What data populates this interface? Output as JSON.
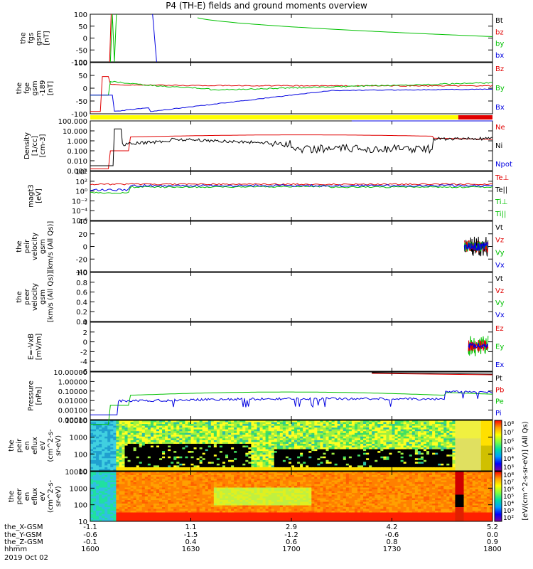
{
  "title": "P4 (TH-E) fields and ground moments overview",
  "colors": {
    "black": "#000000",
    "red": "#e00000",
    "green": "#00c000",
    "blue": "#0000e0",
    "yellow": "#ffff00"
  },
  "chart_data": [
    {
      "type": "line",
      "ylabel": [
        "the",
        "fgs",
        "gsm",
        "[nT]"
      ],
      "yticks": [
        "100",
        "50",
        "0",
        "-50",
        "-100"
      ],
      "ylim": [
        -100,
        100
      ],
      "series": [
        {
          "name": "Bt",
          "color": "#000000"
        },
        {
          "name": "bz",
          "color": "#e00000"
        },
        {
          "name": "by",
          "color": "#00c000"
        },
        {
          "name": "bx",
          "color": "#0000e0"
        }
      ]
    },
    {
      "type": "line",
      "ylabel": [
        "the",
        "fge",
        "gsm",
        "-189",
        "[nT]"
      ],
      "yticks": [
        "100",
        "50",
        "0",
        "-50",
        "-100"
      ],
      "ylim": [
        -120,
        100
      ],
      "series": [
        {
          "name": "Bz",
          "color": "#e00000"
        },
        {
          "name": "By",
          "color": "#00c000"
        },
        {
          "name": "Bx",
          "color": "#0000e0"
        }
      ]
    },
    {
      "type": "line",
      "ylabel": [
        "Density",
        "[1/cc]",
        "[cm-3]"
      ],
      "yticks": [
        "100.000",
        "10.000",
        "1.000",
        "0.100",
        "0.010",
        "0.001"
      ],
      "log": true,
      "series": [
        {
          "name": "Ne",
          "color": "#e00000"
        },
        {
          "name": "Ni",
          "color": "#000000"
        },
        {
          "name": "Npot",
          "color": "#0000e0"
        }
      ]
    },
    {
      "type": "line",
      "ylabel": [
        "magt3",
        "[eV]"
      ],
      "yticks": [
        "10⁴",
        "10²",
        "10⁰",
        "10⁻²",
        "10⁻⁴",
        "10⁻⁶"
      ],
      "log": true,
      "series": [
        {
          "name": "Te⊥",
          "color": "#e00000"
        },
        {
          "name": "Te||",
          "color": "#000000"
        },
        {
          "name": "Ti⊥",
          "color": "#00c000"
        },
        {
          "name": "Ti||",
          "color": "#00c000"
        }
      ]
    },
    {
      "type": "line",
      "ylabel": [
        "the",
        "peir",
        "velocity",
        "gsm",
        "[km/s (All Qs)]"
      ],
      "yticks": [
        "40",
        "20",
        "0",
        "-20",
        "-40"
      ],
      "ylim": [
        -40,
        40
      ],
      "series": [
        {
          "name": "Vt",
          "color": "#000000"
        },
        {
          "name": "Vz",
          "color": "#e00000"
        },
        {
          "name": "Vy",
          "color": "#00c000"
        },
        {
          "name": "Vx",
          "color": "#0000e0"
        }
      ]
    },
    {
      "type": "line",
      "ylabel": [
        "the",
        "peer",
        "velocity",
        "gsm",
        "[km/s (All Qs)]"
      ],
      "yticks": [
        "1.0",
        "0.8",
        "0.6",
        "0.4",
        "0.2",
        "0.0"
      ],
      "ylim": [
        0,
        1
      ],
      "series": [
        {
          "name": "Vt",
          "color": "#000000"
        },
        {
          "name": "Vz",
          "color": "#e00000"
        },
        {
          "name": "Vy",
          "color": "#00c000"
        },
        {
          "name": "Vx",
          "color": "#0000e0"
        }
      ]
    },
    {
      "type": "line",
      "ylabel": [
        "E=-VxB",
        "[mV/m]"
      ],
      "yticks": [
        "4",
        "2",
        "0",
        "-2",
        "-4",
        "-6"
      ],
      "ylim": [
        -6,
        5
      ],
      "series": [
        {
          "name": "Ez",
          "color": "#e00000"
        },
        {
          "name": "Ey",
          "color": "#00c000"
        },
        {
          "name": "Ex",
          "color": "#0000e0"
        }
      ]
    },
    {
      "type": "line",
      "ylabel": [
        "Pressure",
        "[nPa]"
      ],
      "yticks": [
        "10.00000",
        "1.00000",
        "0.10000",
        "0.01000",
        "0.00100",
        "0.00010"
      ],
      "log": true,
      "series": [
        {
          "name": "Pt",
          "color": "#000000"
        },
        {
          "name": "Pb",
          "color": "#e00000"
        },
        {
          "name": "Pe",
          "color": "#00c000"
        },
        {
          "name": "Pi",
          "color": "#0000e0"
        }
      ]
    },
    {
      "type": "heatmap",
      "ylabel": [
        "the",
        "peir",
        "en",
        "eflux",
        "eV",
        "(cm^2-s-",
        "sr-eV)"
      ],
      "yticks": [
        "10000",
        "1000",
        "100",
        "10"
      ],
      "log": true,
      "colorbar_ticks": [
        "10⁸",
        "10⁷",
        "10⁶",
        "10⁵",
        "10⁴",
        "10³"
      ]
    },
    {
      "type": "heatmap",
      "ylabel": [
        "the",
        "peer",
        "en",
        "eflux",
        "eV",
        "(cm^2-s-",
        "sr-eV)"
      ],
      "yticks": [
        "10000",
        "1000",
        "100",
        "10"
      ],
      "log": true,
      "colorbar_ticks": [
        "10⁸",
        "10⁷",
        "10⁶",
        "10⁵",
        "10⁴",
        "10³",
        "10²"
      ]
    }
  ],
  "colorbar_label": "[eV/(cm^2-s-sr-eV)] (All Qs)",
  "xaxis": {
    "row_labels": [
      "the_X-GSM",
      "the_Y-GSM",
      "the_Z-GSM",
      "hhmm",
      "2019 Oct 02"
    ],
    "columns": [
      {
        "x": "-1.1",
        "y": "-0.6",
        "z": "-0.1",
        "t": "1600"
      },
      {
        "x": "1.1",
        "y": "-1.5",
        "z": "0.4",
        "t": "1630"
      },
      {
        "x": "2.9",
        "y": "-1.2",
        "z": "0.6",
        "t": "1700"
      },
      {
        "x": "4.2",
        "y": "-0.6",
        "z": "0.8",
        "t": "1730"
      },
      {
        "x": "5.2",
        "y": "0.0",
        "z": "0.9",
        "t": "1800"
      }
    ]
  }
}
